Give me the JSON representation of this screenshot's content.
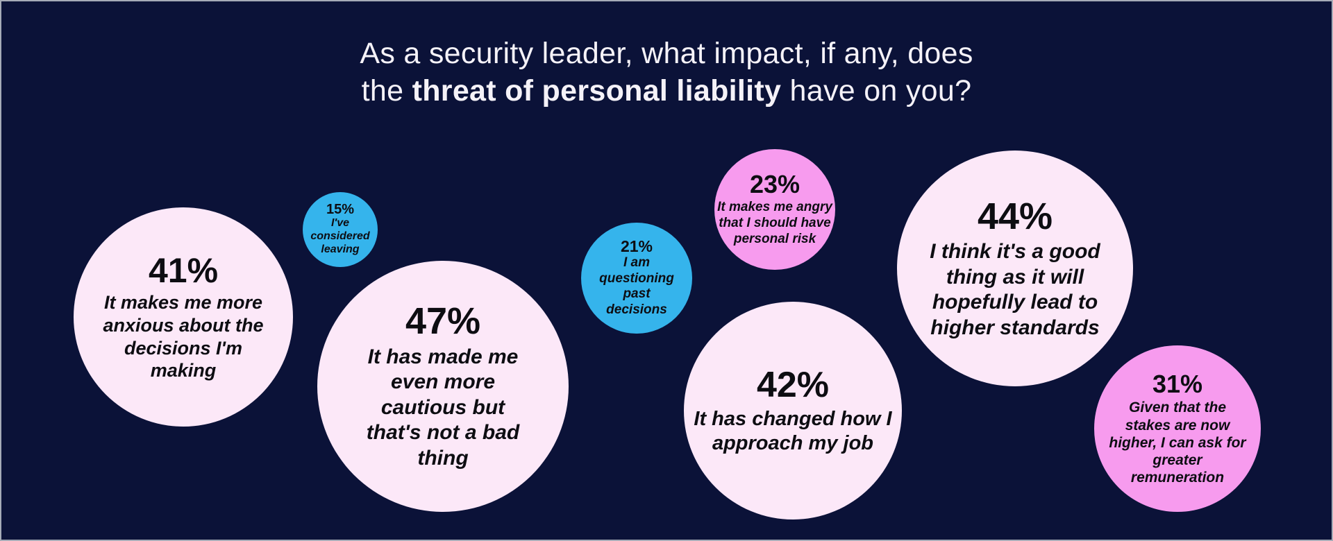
{
  "title": {
    "line1": "As a security leader, what impact, if any, does",
    "line2_pre": "the ",
    "line2_bold": "threat of personal liability",
    "line2_post": " have on you?"
  },
  "colors": {
    "background": "#0b1238",
    "pale_pink": "#fce8f8",
    "blue": "#35b4ec",
    "magenta": "#f79bee",
    "title_text": "#f5f2f8",
    "bubble_text": "#0d0d12",
    "frame_border": "#a6abb7"
  },
  "chart_data": {
    "type": "bubble",
    "title": "As a security leader, what impact, if any, does the threat of personal liability have on you?",
    "unit": "%",
    "legend": "none",
    "layout": "freeform packed bubbles on dark navy background, bubble area proportional to percentage",
    "points": [
      {
        "value": 41,
        "display": "41%",
        "label": "It makes me more anxious about the decisions I'm making",
        "color_name": "pale_pink",
        "color": "#fce8f8"
      },
      {
        "value": 15,
        "display": "15%",
        "label": "I've considered leaving",
        "color_name": "blue",
        "color": "#35b4ec"
      },
      {
        "value": 47,
        "display": "47%",
        "label": "It has made me even more cautious but that's not a bad thing",
        "color_name": "pale_pink",
        "color": "#fce8f8"
      },
      {
        "value": 21,
        "display": "21%",
        "label": "I am questioning past decisions",
        "color_name": "blue",
        "color": "#35b4ec"
      },
      {
        "value": 23,
        "display": "23%",
        "label": "It makes me angry that I should have personal risk",
        "color_name": "magenta",
        "color": "#f79bee"
      },
      {
        "value": 42,
        "display": "42%",
        "label": "It has changed how I approach my job",
        "color_name": "pale_pink",
        "color": "#fce8f8"
      },
      {
        "value": 44,
        "display": "44%",
        "label": "I think it's a good thing as it will hopefully lead to higher standards",
        "color_name": "pale_pink",
        "color": "#fce8f8"
      },
      {
        "value": 31,
        "display": "31%",
        "label": "Given that the stakes are now higher, I can ask for greater remuneration",
        "color_name": "magenta",
        "color": "#f79bee"
      }
    ]
  }
}
